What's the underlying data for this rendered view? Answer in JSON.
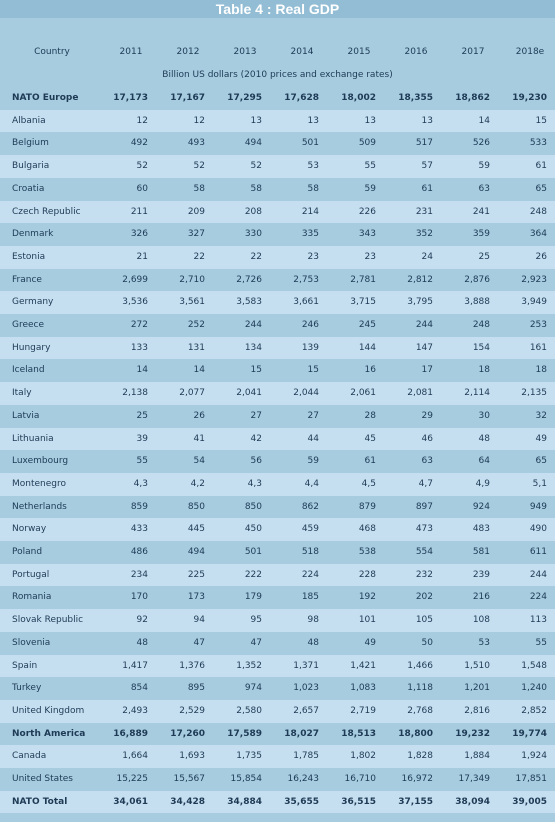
{
  "title": "Table 4 : Real GDP",
  "table": {
    "columns": [
      "Country",
      "2011",
      "2012",
      "2013",
      "2014",
      "2015",
      "2016",
      "2017",
      "2018e"
    ],
    "unit_note": "Billion US dollars (2010 prices and exchange rates)",
    "rows": [
      [
        "NATO Europe",
        "17,173",
        "17,167",
        "17,295",
        "17,628",
        "18,002",
        "18,355",
        "18,862",
        "19,230"
      ],
      [
        "Albania",
        "12",
        "12",
        "13",
        "13",
        "13",
        "13",
        "14",
        "15"
      ],
      [
        "Belgium",
        "492",
        "493",
        "494",
        "501",
        "509",
        "517",
        "526",
        "533"
      ],
      [
        "Bulgaria",
        "52",
        "52",
        "52",
        "53",
        "55",
        "57",
        "59",
        "61"
      ],
      [
        "Croatia",
        "60",
        "58",
        "58",
        "58",
        "59",
        "61",
        "63",
        "65"
      ],
      [
        "Czech Republic",
        "211",
        "209",
        "208",
        "214",
        "226",
        "231",
        "241",
        "248"
      ],
      [
        "Denmark",
        "326",
        "327",
        "330",
        "335",
        "343",
        "352",
        "359",
        "364"
      ],
      [
        "Estonia",
        "21",
        "22",
        "22",
        "23",
        "23",
        "24",
        "25",
        "26"
      ],
      [
        "France",
        "2,699",
        "2,710",
        "2,726",
        "2,753",
        "2,781",
        "2,812",
        "2,876",
        "2,923"
      ],
      [
        "Germany",
        "3,536",
        "3,561",
        "3,583",
        "3,661",
        "3,715",
        "3,795",
        "3,888",
        "3,949"
      ],
      [
        "Greece",
        "272",
        "252",
        "244",
        "246",
        "245",
        "244",
        "248",
        "253"
      ],
      [
        "Hungary",
        "133",
        "131",
        "134",
        "139",
        "144",
        "147",
        "154",
        "161"
      ],
      [
        "Iceland",
        "14",
        "14",
        "15",
        "15",
        "16",
        "17",
        "18",
        "18"
      ],
      [
        "Italy",
        "2,138",
        "2,077",
        "2,041",
        "2,044",
        "2,061",
        "2,081",
        "2,114",
        "2,135"
      ],
      [
        "Latvia",
        "25",
        "26",
        "27",
        "27",
        "28",
        "29",
        "30",
        "32"
      ],
      [
        "Lithuania",
        "39",
        "41",
        "42",
        "44",
        "45",
        "46",
        "48",
        "49"
      ],
      [
        "Luxembourg",
        "55",
        "54",
        "56",
        "59",
        "61",
        "63",
        "64",
        "65"
      ],
      [
        "Montenegro",
        "4,3",
        "4,2",
        "4,3",
        "4,4",
        "4,5",
        "4,7",
        "4,9",
        "5,1"
      ],
      [
        "Netherlands",
        "859",
        "850",
        "850",
        "862",
        "879",
        "897",
        "924",
        "949"
      ],
      [
        "Norway",
        "433",
        "445",
        "450",
        "459",
        "468",
        "473",
        "483",
        "490"
      ],
      [
        "Poland",
        "486",
        "494",
        "501",
        "518",
        "538",
        "554",
        "581",
        "611"
      ],
      [
        "Portugal",
        "234",
        "225",
        "222",
        "224",
        "228",
        "232",
        "239",
        "244"
      ],
      [
        "Romania",
        "170",
        "173",
        "179",
        "185",
        "192",
        "202",
        "216",
        "224"
      ],
      [
        "Slovak Republic",
        "92",
        "94",
        "95",
        "98",
        "101",
        "105",
        "108",
        "113"
      ],
      [
        "Slovenia",
        "48",
        "47",
        "47",
        "48",
        "49",
        "50",
        "53",
        "55"
      ],
      [
        "Spain",
        "1,417",
        "1,376",
        "1,352",
        "1,371",
        "1,421",
        "1,466",
        "1,510",
        "1,548"
      ],
      [
        "Turkey",
        "854",
        "895",
        "974",
        "1,023",
        "1,083",
        "1,118",
        "1,201",
        "1,240"
      ],
      [
        "United Kingdom",
        "2,493",
        "2,529",
        "2,580",
        "2,657",
        "2,719",
        "2,768",
        "2,816",
        "2,852"
      ],
      [
        "North America",
        "16,889",
        "17,260",
        "17,589",
        "18,027",
        "18,513",
        "18,800",
        "19,232",
        "19,774"
      ],
      [
        "Canada",
        "1,664",
        "1,693",
        "1,735",
        "1,785",
        "1,802",
        "1,828",
        "1,884",
        "1,924"
      ],
      [
        "United States",
        "15,225",
        "15,567",
        "15,854",
        "16,243",
        "16,710",
        "16,972",
        "17,349",
        "17,851"
      ],
      [
        "NATO Total",
        "34,061",
        "34,428",
        "34,884",
        "35,655",
        "36,515",
        "37,155",
        "38,094",
        "39,005"
      ]
    ]
  }
}
